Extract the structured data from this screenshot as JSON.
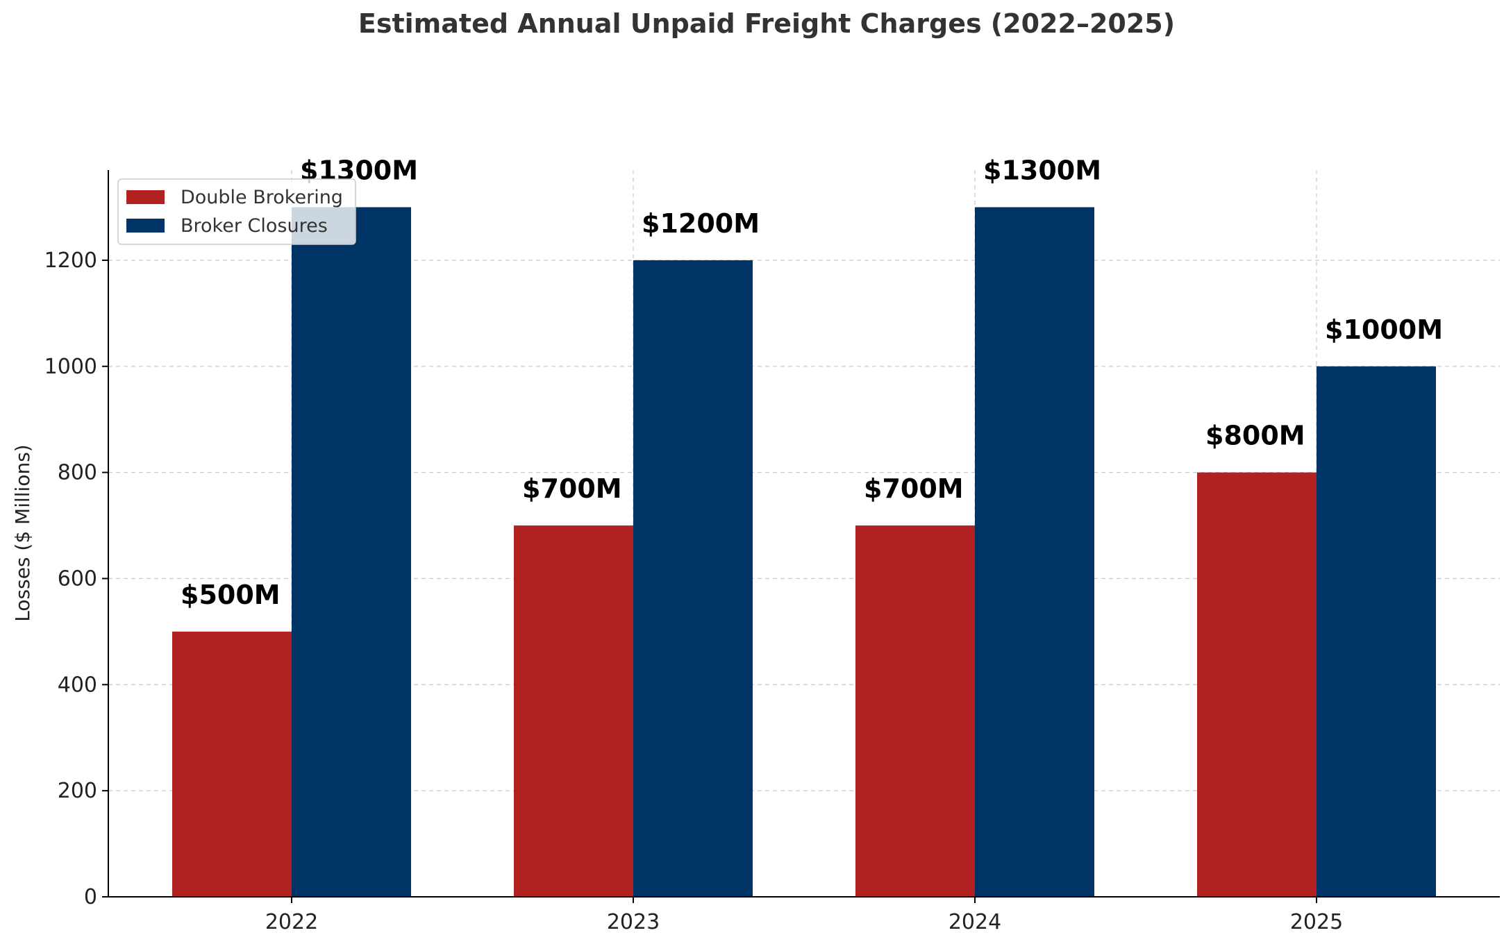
{
  "chart_data": {
    "type": "bar",
    "title": "Estimated Annual Unpaid Freight Charges (2022–2025)",
    "xlabel": "",
    "ylabel": "Losses ($ Millions)",
    "categories": [
      "2022",
      "2023",
      "2024",
      "2025"
    ],
    "series": [
      {
        "name": "Double Brokering",
        "color": "#b22222",
        "values": [
          500,
          700,
          700,
          800
        ],
        "labels": [
          "$500M",
          "$700M",
          "$700M",
          "$800M"
        ]
      },
      {
        "name": "Broker Closures",
        "color": "#003366",
        "values": [
          1300,
          1200,
          1300,
          1000
        ],
        "labels": [
          "$1300M",
          "$1200M",
          "$1300M",
          "$1000M"
        ]
      }
    ],
    "ylim": [
      0,
      1370
    ],
    "yticks": [
      0,
      200,
      400,
      600,
      800,
      1000,
      1200
    ],
    "ytick_labels": [
      "0",
      "200",
      "400",
      "600",
      "800",
      "1000",
      "1200"
    ],
    "grid": true,
    "legend_position": "top-left"
  }
}
